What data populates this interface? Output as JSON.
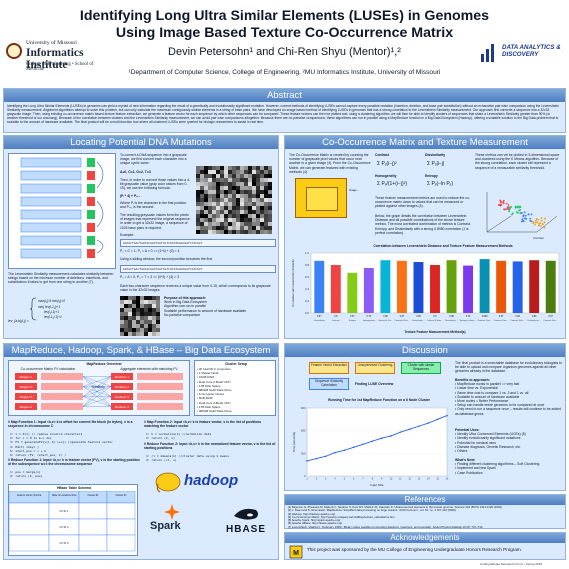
{
  "header": {
    "title_line1": "Identifying Long Ultra Similar Elements (LUSEs) in Genomes",
    "title_line2": "Using Image Based Texture Co-Occurrence Matrix",
    "authors": "Devin Petersohn¹ and Chi-Ren Shyu (Mentor)¹,²",
    "affiliation": "¹Department of Computer Science, College of Engineering, ²MU Informatics Institute, University of Missouri",
    "left_logo_univ": "University of Missouri",
    "left_logo_name": "Informatics Institute",
    "left_logo_sub": "College of Engineering • School of Medicine",
    "right_logo_text": "DATA ANALYTICS & DISCOVERY"
  },
  "sections": {
    "abstract": "Abstract",
    "locating": "Locating Potential DNA Mutations",
    "cooc": "Co-Occurrence Matrix and Texture Measurement",
    "mapreduce": "MapReduce, Hadoop, Spark, & HBase – Big Data Ecosystem",
    "discussion": "Discussion",
    "references": "References",
    "acknowledgements": "Acknowledgements"
  },
  "abstract_text": "Identifying the Long Ultra Similar Elements (LUSEs) in genomes can yield a myriad of new information regarding the result of a genetically and evolutionarily significant mutation. However, current methods of identifying LUSEs cannot capture every possible mutation (insertion, deletion, and base pair substitution) without an exhaustive pair wise comparison using the Levenshtein Similarity measurement. Alignment algorithms attempt to solve this problem, but can only calculate the maximum contiguously similar elements in a string of base pairs. We have developed an image based method of identifying LUSEs in genomes that has a strong correlation to the Levenshtein Similarity measurement. Our approach first converts a sequence into a 32x32 grayscale image. Then, using existing co-occurrence matrix based texture feature extraction, we generate a feature vector for each sequence by which other sequences can be compared. These feature vectors can then be plotted and, using a clustering algorithm, we will then be able to identify clusters of sequences that share a Levenshtein Similarity greater than 90% (or another threshold of our choosing). Because of the correlation between clusters and the Levenshtein Similarity measurement, we can avoid pair wise comparisons altogether. Because there are no pairwise comparisons, these algorithms can run in parallel using a MapReduce function in a Big Data Ecosystem (Hadoop), offering a scalable solution to the Big Data problem that is scalable to the amount of hardware available. The final product will be a multi-function tool where all clustered LUSEs were queried for biologic researchers to assist in real time.",
  "locating": {
    "para1": "To convert a DNA sequence into a grayscale image, we first convert each character into a unique cyclic value:",
    "mapping": "A=0, C=1, G=2, T=3",
    "para2": "Then, in order to convert those values into a 4-bit grayscale value (gray color values from 0-15), we use the following formula:",
    "formula": "(Pᵢ * 4) + Pᵢ₊₁",
    "para3": "Where Pᵢ is the character in the first position, and Pᵢ₊₁ is the second.",
    "para4": "The resulting grayscale values form the pixels of images that represent the original sequence. In order to get a 32x32 image, a sequence of 1025 base pairs is required.",
    "example_label": "Example:",
    "seq1": "GATACTAACTGATACGATCGATCGTCATATAGGCGATCTACGCT",
    "calc1": "P₀ = C = 1, P₁ = A = 0 => (1*4) + (0) = 4",
    "para5": "Using a sliding window, the second position becomes the first.",
    "seq2": "GATACTAACTGATACGATCGATCGTCATATAGGCGATCTACGCT",
    "calc2": "P₀ = A = 0, P₁ = T = 3 => (0*4) + (3) = 3",
    "para6": "Each two-character sequence receives a unique value from 0-15, which corresponds to its grayscale value in the 32x32 images.",
    "purpose_title": "Purpose of this approach:",
    "purpose": [
      "Work in Big Data Ecosystem",
      "Algorithm can run in parallel",
      "Scalable performance to amount of hardware available",
      "No pairwise comparison"
    ],
    "lev_para": "The Levenshtein Similarity measurement calculates similarity between strings based on the minimum number of deletions, insertions, and substitutions it takes to get from one string to another (7).",
    "lev_label": "lev_{a,b}(i,j) ="
  },
  "cooc": {
    "para1": "The Co-Occurrence Matrix is created by counting the number of grayscale pixel values that occur near another in a given image (4). From the Co-Occurrence Matrix, we can generate features with existing methods (4).",
    "features": [
      "Contrast",
      "Dissimilarity",
      "Homogeneity",
      "Entropy"
    ],
    "right_para": "These metrics can vel be plotted in 3-dimensional space and clustered using the K Means algorithm. Because of the strong correlation, each cluster will represent a sequence of a measurable similarity threshold.",
    "para2": "These feature measurement metrics are used to reduce the co-occurrence matrix down to values that can be measured or plotted against other images (4).",
    "para3": "Below, the graph details the correlation between Levenshtein Distance and all possible combinations of the above feature metrics. The most correlated combination of metrics is Contrast, Entropy, and Dissimilarity with a strong 0.8980 correlation (1 is perfect correlation).",
    "image_note": "Image...",
    "scatter_label": "Contrast",
    "chart_title": "Correlation between Levenshtein Distance and Texture Feature Measurement Methods",
    "chart_xlabel": "Texture Feature Measurement Method(s)",
    "chart_ylabel": "Correlation with Levenshtein Similarity"
  },
  "chart_data": {
    "type": "bar",
    "title": "Correlation between Levenshtein Distance and Texture Feature Measurement Methods",
    "xlabel": "Texture Feature Measurement Method(s)",
    "ylabel": "Correlation with Levenshtein Similarity",
    "ylim": [
      0,
      1
    ],
    "categories": [
      "Dissimilarity",
      "Contrast",
      "Entropy",
      "Homogeneity",
      "Contrast & Dissimilarity",
      "Contrast & Entropy",
      "Dissimilarity & Homogeneity",
      "Contrast & Homogeneity",
      "Dissimilarity & Entropy",
      "Entropy & Homogeneity",
      "Contrast, Dissimilarity & Entropy",
      "Contrast, Dissimilarity & Homogeneity",
      "Contrast, Entropy & Homogeneity",
      "Dissimilarity, Entropy & Homogeneity",
      "Contrast, Entropy, Dissimilarity & Homogeneity"
    ],
    "values": [
      0.87,
      0.8,
      0.67,
      0.75,
      0.88,
      0.87,
      0.85,
      0.8,
      0.88,
      0.79,
      0.898,
      0.87,
      0.86,
      0.88,
      0.87
    ],
    "colors": [
      "#3b82f6",
      "#ef4444",
      "#84cc16",
      "#8b5cf6",
      "#06b6d4",
      "#f97316",
      "#1d4ed8",
      "#dc2626",
      "#65a30d",
      "#7c3aed",
      "#0891b2",
      "#ea580c",
      "#2563eb",
      "#b91c1c",
      "#4d7c0f"
    ]
  },
  "mapreduce": {
    "left_title": "MapReduce Overview",
    "cooc_title": "Co-occurrence Matrix FV calculation",
    "agg_title": "Aggregate elements with matching FV",
    "shuffling": "Shuffling",
    "mapper_labels": [
      "Mapper 1",
      "Mapper 2",
      "Mapper 3",
      "Mapper 4"
    ],
    "reducer_labels": [
      "Reducer 1",
      "Reducer 2",
      "Reducer 3",
      "Reducer 4"
    ],
    "cluster_title": "Cluster Setup",
    "cluster_lines": [
      "20 total MLC computers",
      "1 Master Node",
      "16GB RAM",
      "Dual Core 2.8GHz CPU",
      "1TB Disk Space",
      "480GB Solid State Drive",
      "6 Computer Nodes",
      "8GB RAM",
      "Dual Core 2.8GHz CPU",
      "1TB Disk Space",
      "480GB Solid State Drive"
    ],
    "map1_title": "// Map Function 1: Input <k,v> k is offset for current file block (in bytes), v is a sequence in chromosome C",
    "map1_code": [
      "1:  x = P(v)      // remove invalid characters",
      "2:  for i = 0 to m-n do{",
      "3:      FV = generateFV(v[i to i+n]) //generate feature vector",
      "4:      Emit( <key> )",
      "5:      start_pos = i + k",
      "6:      return (FV, (start_pos, C) )"
    ],
    "reduce1_title": "// Reduce Function 1: Input <k,v> k is feature vector (FV), v is the starting position of the subsequence w.r.t the chromosome sequence",
    "reduce1_code": [
      "1:  pos = merge(v)",
      "2:  return (k, pos)"
    ],
    "map2_title": "// Map Function 2: Input <k,v> k is feature vector, v is the list of positions matching the feature vector",
    "map2_code": [
      "1:  k = normalize(k) //normalize data",
      "2:  return (k, v)"
    ],
    "reduce2_title": "// Reduce Function 2: Input <k,v> k is the normalized feature vector, v is the list of starting positions",
    "reduce2_code": [
      "1:  cl = kmeans(k) //cluster data using k means",
      "2:  return (cl, v)"
    ],
    "hbase_title": "HBase Table Schema",
    "hbase_cols": [
      "Feature Vector (Contrast, Entropy, Dissimilarity)",
      "Table of Locations Row Key",
      "Cluster #1",
      "Cluster #n"
    ],
    "hbase_rows": [
      "FV ID 1",
      "FV ID 2",
      "FV ID 3"
    ],
    "hadoop_label": "hadoop",
    "spark_label": "Spark",
    "hbase_label": "HBASE"
  },
  "discussion": {
    "box_labels": [
      "Feature Vector Extraction",
      "Unsupervised Clustering",
      "Cluster with similar Sequences",
      "Sequence Similarity Calculation",
      "Finding LUSE Overview"
    ],
    "chart_title": "Running Time for 1st MapReduce Function on a 6 Node Cluster",
    "chart_ylabel": "Time (seconds)",
    "chart_xlabel": "Input Size",
    "text1": "The final product is a searchable database for evolutionary biologists to be able to upload and compare organism genomes against all other genomes already in the database.",
    "benefits_title": "Benefits to approach:",
    "benefits": [
      "MapReduce works in parallel => very fast",
      "Linear time vs. Exponential",
      "Same time cost to compare 1 vs. 3 and 1 vs. all",
      "Scalable to amount of hardware available",
      "More nodes = Better Performance",
      "Setup can handle entire genomes to be compared at once",
      "Only need to run a sequence once – results will continue to be added as database grows"
    ],
    "potential_title": "Potential Uses:",
    "potential": [
      "Identify Ultra Conserved Elements (UCEs) (5)",
      "Identify evolutionarily significant mutations",
      "Potential for medical uses",
      "Disease diagnosis, Genetic Research, etc.",
      "Others"
    ],
    "next_title": "What's Next:",
    "next": [
      "Finding different clustering algorithms – Soft Clustering",
      "Implement and test Spark",
      "Case Publication"
    ]
  },
  "line_chart": {
    "type": "line",
    "title": "Running Time for 1st MapReduce Function on a 6 Node Cluster",
    "xlabel": "Input Size",
    "ylabel": "Time (seconds)",
    "x": [
      "1",
      "2",
      "3",
      "4",
      "5",
      "6",
      "7",
      "8",
      "9",
      "10",
      "11",
      "12",
      "13",
      "14",
      "15",
      "16"
    ],
    "values": [
      200,
      230,
      260,
      310,
      340,
      380,
      420,
      460,
      500,
      530,
      580,
      620,
      660,
      700,
      750,
      800
    ],
    "ylim": [
      0,
      900
    ]
  },
  "references": [
    "[1] Bejerano G, Pheasant M, Makunin I, Stephen S, Kent WJ, Mattick JS, Haussler D. Ultraconserved elements in the human genome. Science 304 (5675) 1321-1325 (2004).",
    "[2] J. Dean and S. Ghemawat. 'MapReduce: Simplified data processing on large clusters.' ACM Commun., vol. 51, no. 1 107-113 (2008).",
    "[3] Hadoop, http://hadoop.apache.org/",
    "[4] Co-Occurrence Matrix, http://www.fp.ucalgary.ca/mhallbey/texture_calculations.htm",
    "[5] Apache Spark, http://spark.apache.org/",
    "[6] Apache HBase, http://hbase.apache.org/",
    "[7] Levenshtein, Vladimir I. (February 1966). 'Binary codes capable of correcting deletions, insertions, and reversals'. Soviet Physics Doklady 10 (8): 707–710."
  ],
  "ack_text": "This project was sponsored by the MU College of Engineering Undergraduate Honors Research Program",
  "footer": "Undergraduate Research Forum • Spring 2015"
}
